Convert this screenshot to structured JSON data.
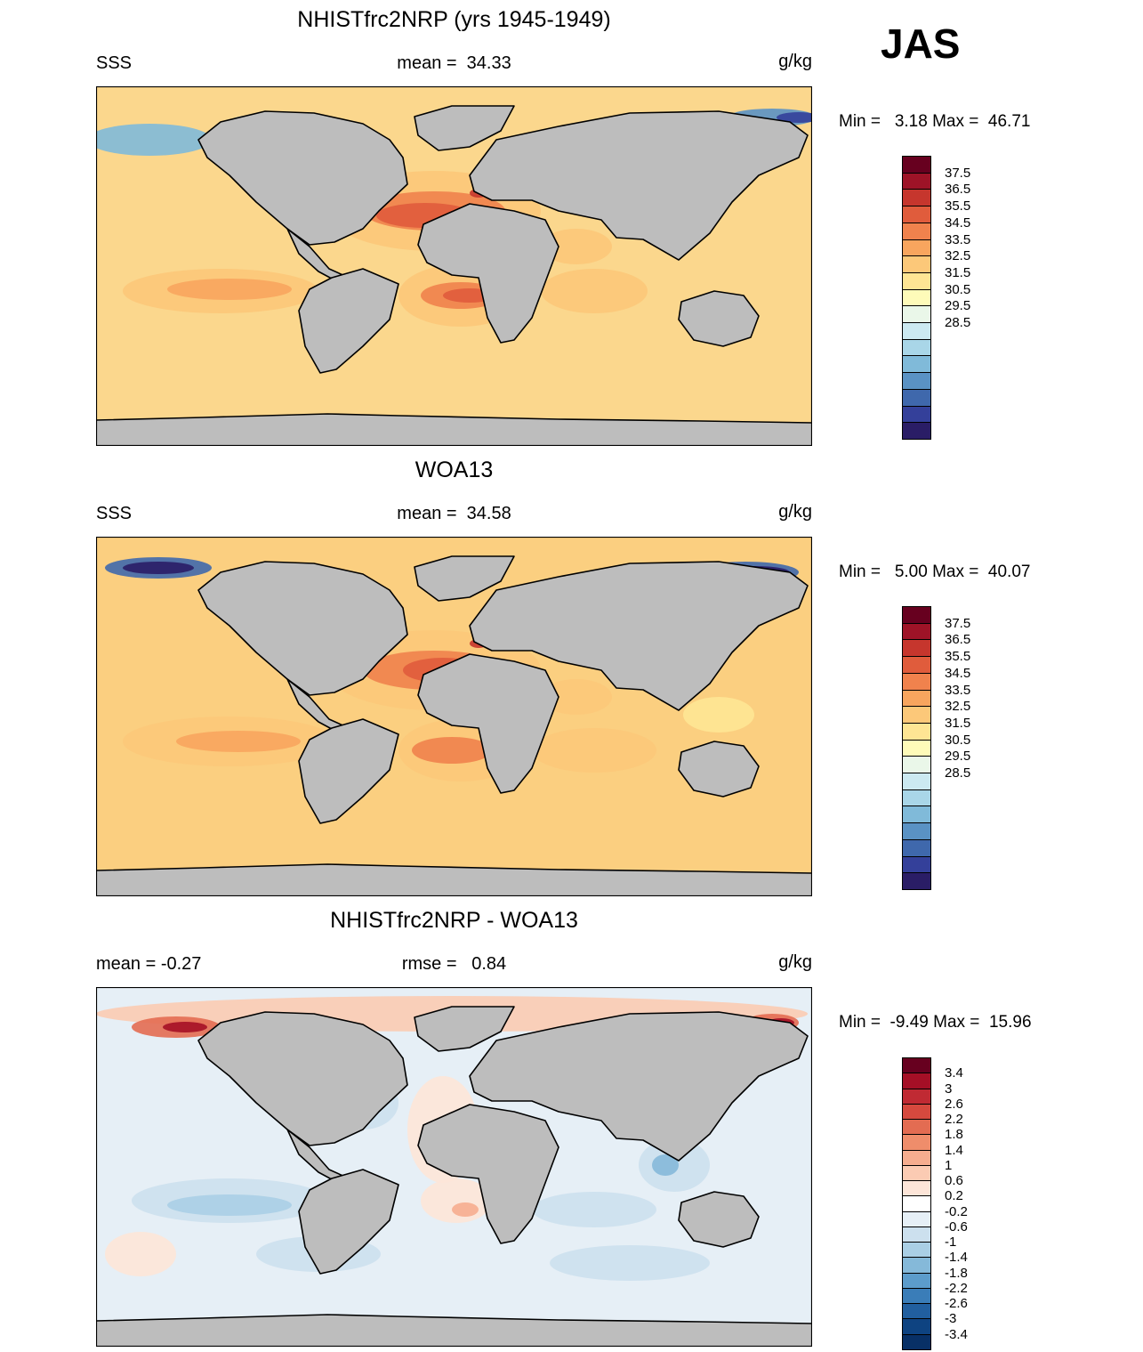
{
  "season": "JAS",
  "panels": [
    {
      "title": "NHISTfrc2NRP (yrs 1945-1949)",
      "left": "SSS",
      "center": "mean =  34.33",
      "right": "g/kg",
      "minmax": "Min =   3.18 Max =  46.71",
      "colorbar": {
        "labels": [
          "37.5",
          "36.5",
          "35.5",
          "34.5",
          "33.5",
          "32.5",
          "31.5",
          "30.5",
          "29.5",
          "28.5"
        ],
        "colors": [
          "#67001f",
          "#9e1327",
          "#c6362d",
          "#e05c3c",
          "#f0824d",
          "#f8a55e",
          "#fcc879",
          "#fee594",
          "#fefbb9",
          "#eaf7e9",
          "#cce9f1",
          "#a9d6e8",
          "#80bad9",
          "#5a92c4",
          "#3f68ac",
          "#34409a",
          "#2a1d66"
        ]
      },
      "map_kind": "sss",
      "ocean": "#fbd78d"
    },
    {
      "title": "WOA13",
      "left": "SSS",
      "center": "mean =  34.58",
      "right": "g/kg",
      "minmax": "Min =   5.00 Max =  40.07",
      "colorbar": {
        "labels": [
          "37.5",
          "36.5",
          "35.5",
          "34.5",
          "33.5",
          "32.5",
          "31.5",
          "30.5",
          "29.5",
          "28.5"
        ],
        "colors": [
          "#67001f",
          "#9e1327",
          "#c6362d",
          "#e05c3c",
          "#f0824d",
          "#f8a55e",
          "#fcc879",
          "#fee594",
          "#fefbb9",
          "#eaf7e9",
          "#cce9f1",
          "#a9d6e8",
          "#80bad9",
          "#5a92c4",
          "#3f68ac",
          "#34409a",
          "#2a1d66"
        ]
      },
      "map_kind": "sss",
      "ocean": "#fbcf80"
    },
    {
      "title": "NHISTfrc2NRP - WOA13",
      "left": "mean =  -0.27",
      "center": "rmse =   0.84",
      "right": "g/kg",
      "minmax": "Min =  -9.49 Max =  15.96",
      "colorbar": {
        "labels": [
          "3.4",
          "3",
          "2.6",
          "2.2",
          "1.8",
          "1.4",
          "1",
          "0.6",
          "0.2",
          "-0.2",
          "-0.6",
          "-1",
          "-1.4",
          "-1.8",
          "-2.2",
          "-2.6",
          "-3",
          "-3.4"
        ],
        "colors": [
          "#67001f",
          "#a50f26",
          "#c02a33",
          "#d6493e",
          "#e36c52",
          "#ef8d6b",
          "#f6ad8f",
          "#fbcbb3",
          "#fde5d8",
          "#ffffff",
          "#e6eff6",
          "#cce0ee",
          "#aacfe5",
          "#85b9d9",
          "#5c9ccb",
          "#3a7db8",
          "#215f9f",
          "#0e4381",
          "#083066"
        ]
      },
      "map_kind": "diff",
      "ocean": "#e6eff6"
    }
  ]
}
